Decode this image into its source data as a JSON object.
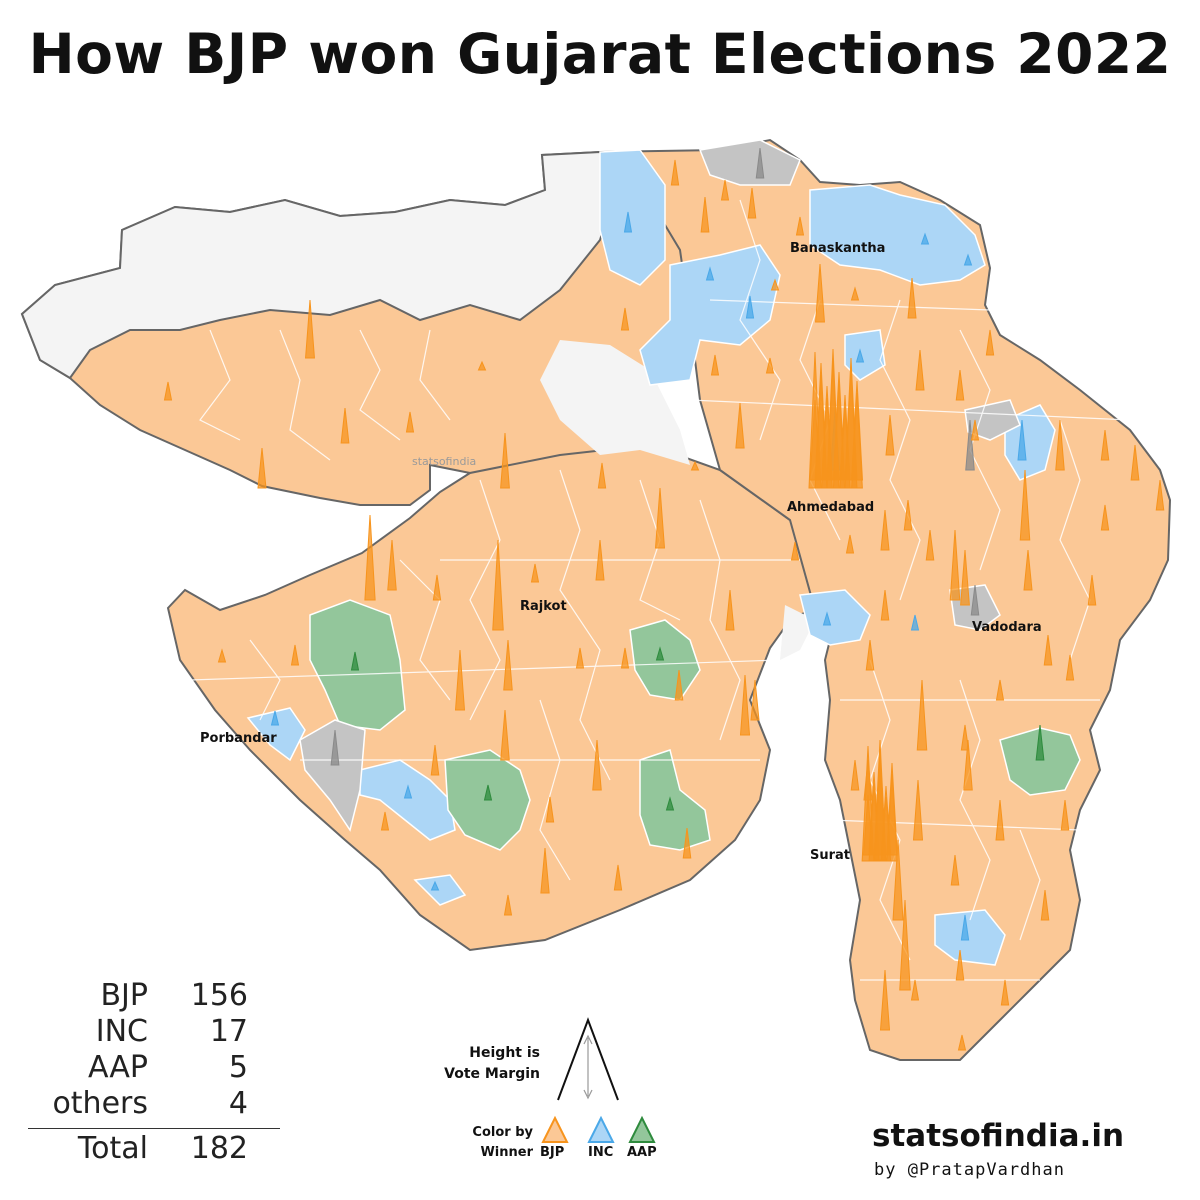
{
  "title": "How BJP won Gujarat Elections 2022",
  "watermark": "statsofindia",
  "cities": {
    "banaskantha": "Banaskantha",
    "ahmedabad": "Ahmedabad",
    "rajkot": "Rajkot",
    "vadodara": "Vadodara",
    "porbandar": "Porbandar",
    "surat": "Surat"
  },
  "colors": {
    "BJP": "#f7941d",
    "INC": "#4aa8e8",
    "AAP": "#2e8b3d",
    "others": "#8a8a8a",
    "BJP_area": "#fbc896",
    "INC_area": "#acd6f6",
    "AAP_area": "#93c69b",
    "others_area": "#c4c4c4",
    "no_seat_area": "#f4f4f4"
  },
  "tally": {
    "rows": [
      {
        "party": "BJP",
        "seats": "156"
      },
      {
        "party": "INC",
        "seats": "17"
      },
      {
        "party": "AAP",
        "seats": "5"
      },
      {
        "party": "others",
        "seats": "4"
      }
    ],
    "total_label": "Total",
    "total_value": "182"
  },
  "legend": {
    "height_line1": "Height is",
    "height_line2": "Vote Margin",
    "color_line1": "Color by",
    "color_line2": "Winner",
    "parties": [
      "BJP",
      "INC",
      "AAP"
    ]
  },
  "brand": "statsofindia.in",
  "byline": "by @PratapVardhan"
}
